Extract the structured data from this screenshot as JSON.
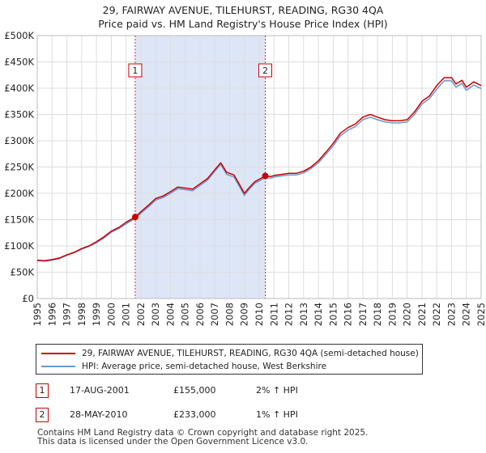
{
  "title": {
    "line1": "29, FAIRWAY AVENUE, TILEHURST, READING, RG30 4QA",
    "line2": "Price paid vs. HM Land Registry's House Price Index (HPI)"
  },
  "colors": {
    "price_line": "#cc0000",
    "hpi_line": "#6699cc",
    "shade": "#dde6f7",
    "marker_border": "#cc0000",
    "grid": "#dddddd"
  },
  "chart_data": {
    "type": "line",
    "title": "29, FAIRWAY AVENUE, TILEHURST, READING, RG30 4QA — Price paid vs. HM Land Registry's House Price Index (HPI)",
    "xlabel": "",
    "ylabel": "",
    "xlim": [
      1995,
      2025
    ],
    "ylim": [
      0,
      500000
    ],
    "x_ticks": [
      "1995",
      "1996",
      "1997",
      "1998",
      "1999",
      "2000",
      "2001",
      "2002",
      "2003",
      "2004",
      "2005",
      "2006",
      "2007",
      "2008",
      "2009",
      "2010",
      "2011",
      "2012",
      "2013",
      "2014",
      "2015",
      "2016",
      "2017",
      "2018",
      "2019",
      "2020",
      "2021",
      "2022",
      "2023",
      "2024",
      "2025"
    ],
    "y_ticks": [
      {
        "value": 0,
        "label": "£0"
      },
      {
        "value": 50000,
        "label": "£50K"
      },
      {
        "value": 100000,
        "label": "£100K"
      },
      {
        "value": 150000,
        "label": "£150K"
      },
      {
        "value": 200000,
        "label": "£200K"
      },
      {
        "value": 250000,
        "label": "£250K"
      },
      {
        "value": 300000,
        "label": "£300K"
      },
      {
        "value": 350000,
        "label": "£350K"
      },
      {
        "value": 400000,
        "label": "£400K"
      },
      {
        "value": 450000,
        "label": "£450K"
      },
      {
        "value": 500000,
        "label": "£500K"
      }
    ],
    "grid": true,
    "shaded_range": [
      2001.62,
      2010.41
    ],
    "series": [
      {
        "name": "29, FAIRWAY AVENUE, TILEHURST, READING, RG30 4QA (semi-detached house)",
        "x": [
          1995.0,
          1995.5,
          1996.0,
          1996.5,
          1997.0,
          1997.5,
          1998.0,
          1998.5,
          1999.0,
          1999.5,
          2000.0,
          2000.5,
          2001.0,
          2001.62,
          2002.0,
          2002.5,
          2003.0,
          2003.5,
          2004.0,
          2004.5,
          2005.0,
          2005.5,
          2006.0,
          2006.5,
          2007.0,
          2007.4,
          2007.8,
          2008.3,
          2008.7,
          2009.0,
          2009.3,
          2009.7,
          2010.41,
          2010.8,
          2011.0,
          2011.5,
          2012.0,
          2012.5,
          2013.0,
          2013.5,
          2014.0,
          2014.5,
          2015.0,
          2015.5,
          2016.0,
          2016.5,
          2017.0,
          2017.5,
          2018.0,
          2018.5,
          2019.0,
          2019.5,
          2020.0,
          2020.5,
          2021.0,
          2021.5,
          2022.0,
          2022.5,
          2023.0,
          2023.3,
          2023.7,
          2024.0,
          2024.5,
          2025.0
        ],
        "values": [
          73000,
          72000,
          74000,
          77000,
          83000,
          88000,
          95000,
          100000,
          108000,
          117000,
          128000,
          135000,
          145000,
          155000,
          165000,
          177000,
          190000,
          195000,
          203000,
          212000,
          210000,
          208000,
          218000,
          228000,
          245000,
          258000,
          240000,
          235000,
          215000,
          200000,
          210000,
          222000,
          233000,
          232000,
          234000,
          236000,
          238000,
          238000,
          242000,
          250000,
          262000,
          278000,
          295000,
          315000,
          325000,
          332000,
          345000,
          350000,
          345000,
          340000,
          338000,
          338000,
          340000,
          355000,
          375000,
          385000,
          405000,
          420000,
          420000,
          408000,
          415000,
          402000,
          412000,
          405000
        ]
      },
      {
        "name": "HPI: Average price, semi-detached house, West Berkshire",
        "x": [
          1995.0,
          1995.5,
          1996.0,
          1996.5,
          1997.0,
          1997.5,
          1998.0,
          1998.5,
          1999.0,
          1999.5,
          2000.0,
          2000.5,
          2001.0,
          2001.62,
          2002.0,
          2002.5,
          2003.0,
          2003.5,
          2004.0,
          2004.5,
          2005.0,
          2005.5,
          2006.0,
          2006.5,
          2007.0,
          2007.4,
          2007.8,
          2008.3,
          2008.7,
          2009.0,
          2009.3,
          2009.7,
          2010.41,
          2010.8,
          2011.0,
          2011.5,
          2012.0,
          2012.5,
          2013.0,
          2013.5,
          2014.0,
          2014.5,
          2015.0,
          2015.5,
          2016.0,
          2016.5,
          2017.0,
          2017.5,
          2018.0,
          2018.5,
          2019.0,
          2019.5,
          2020.0,
          2020.5,
          2021.0,
          2021.5,
          2022.0,
          2022.5,
          2023.0,
          2023.3,
          2023.7,
          2024.0,
          2024.5,
          2025.0
        ],
        "values": [
          72000,
          71000,
          73000,
          76000,
          82000,
          87000,
          94000,
          99000,
          106000,
          115000,
          126000,
          133000,
          142000,
          152000,
          162000,
          174000,
          187000,
          192000,
          200000,
          209000,
          207000,
          205000,
          215000,
          225000,
          242000,
          255000,
          236000,
          231000,
          211000,
          196000,
          207000,
          219000,
          230000,
          229000,
          231000,
          233000,
          235000,
          235000,
          239000,
          247000,
          258000,
          274000,
          290000,
          310000,
          320000,
          327000,
          340000,
          345000,
          340000,
          336000,
          334000,
          334000,
          336000,
          350000,
          370000,
          380000,
          398000,
          414000,
          414000,
          402000,
          409000,
          396000,
          406000,
          399000
        ]
      }
    ],
    "annotations": [
      {
        "label": "1",
        "x": 2001.62,
        "value": 155000
      },
      {
        "label": "2",
        "x": 2010.41,
        "value": 233000
      }
    ]
  },
  "legend": {
    "price_label": "29, FAIRWAY AVENUE, TILEHURST, READING, RG30 4QA (semi-detached house)",
    "hpi_label": "HPI: Average price, semi-detached house, West Berkshire"
  },
  "transactions": [
    {
      "num": "1",
      "date": "17-AUG-2001",
      "price": "£155,000",
      "hpi": "2% ↑ HPI"
    },
    {
      "num": "2",
      "date": "28-MAY-2010",
      "price": "£233,000",
      "hpi": "1% ↑ HPI"
    }
  ],
  "footer": {
    "line1": "Contains HM Land Registry data © Crown copyright and database right 2025.",
    "line2": "This data is licensed under the Open Government Licence v3.0."
  }
}
